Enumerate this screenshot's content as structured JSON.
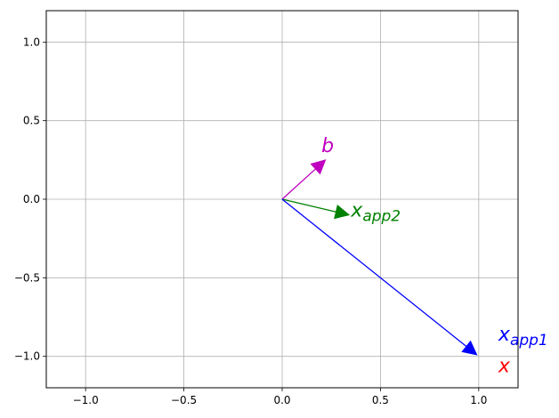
{
  "chart_data": {
    "type": "vector",
    "title": "",
    "xlabel": "",
    "ylabel": "",
    "xlim": [
      -1.2,
      1.2
    ],
    "ylim": [
      -1.2,
      1.2
    ],
    "grid": true,
    "x_ticks": [
      -1.0,
      -0.5,
      0.0,
      0.5,
      1.0
    ],
    "x_tick_labels": [
      "−1.0",
      "−0.5",
      "0.0",
      "0.5",
      "1.0"
    ],
    "y_ticks": [
      1.0,
      0.5,
      0.0,
      -0.5,
      -1.0
    ],
    "y_tick_labels": [
      "1.0",
      "0.5",
      "0.0",
      "−0.5",
      "−1.0"
    ],
    "vectors": [
      {
        "id": "b",
        "x0": 0,
        "y0": 0,
        "dx": 0.22,
        "dy": 0.25,
        "color": "#bf00bf"
      },
      {
        "id": "x_app2",
        "x0": 0,
        "y0": 0,
        "dx": 0.34,
        "dy": -0.1,
        "color": "#008000"
      },
      {
        "id": "x_app1",
        "x0": 0,
        "y0": 0,
        "dx": 0.99,
        "dy": -0.99,
        "color": "#0000ff"
      }
    ],
    "annotations": [
      {
        "id": "label_b",
        "base": "b",
        "sub": "",
        "x": 0.2,
        "y": 0.3,
        "color": "#bf00bf"
      },
      {
        "id": "label_x_app2",
        "base": "x",
        "sub": "app2",
        "x": 0.35,
        "y": -0.11,
        "color": "#008000"
      },
      {
        "id": "label_x_app1",
        "base": "x",
        "sub": "app1",
        "x": 1.1,
        "y": -0.9,
        "color": "#0000ff"
      },
      {
        "id": "label_x",
        "base": "x",
        "sub": "",
        "x": 1.1,
        "y": -1.1,
        "color": "#ff0000"
      }
    ]
  }
}
